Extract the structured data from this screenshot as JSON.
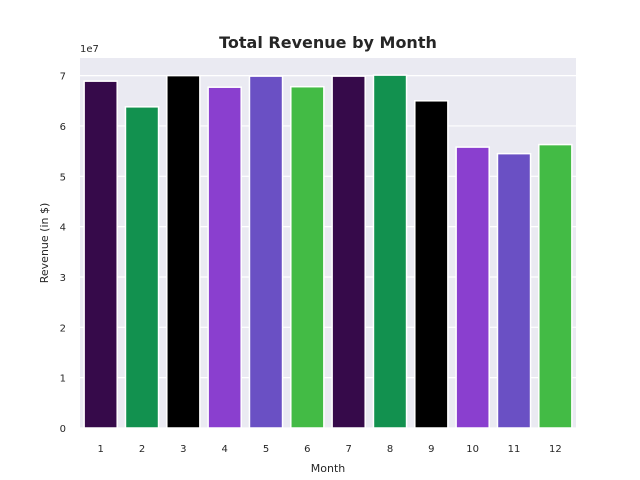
{
  "chart_data": {
    "type": "bar",
    "title": "Total Revenue by Month",
    "xlabel": "Month",
    "ylabel": "Revenue (in $)",
    "offset_label": "1e7",
    "categories": [
      "1",
      "2",
      "3",
      "4",
      "5",
      "6",
      "7",
      "8",
      "9",
      "10",
      "11",
      "12"
    ],
    "values": [
      68900000,
      63800000,
      70000000,
      67700000,
      69900000,
      67800000,
      69900000,
      70100000,
      65000000,
      55800000,
      54500000,
      56300000
    ],
    "bar_colors": [
      "#360a4a",
      "#12914f",
      "#000000",
      "#8a3fcf",
      "#6a50c4",
      "#43bb45",
      "#360a4a",
      "#12914f",
      "#000000",
      "#8a3fcf",
      "#6a50c4",
      "#43bb45"
    ],
    "ylim": [
      0,
      73500000
    ],
    "y_ticks": [
      0,
      10000000,
      20000000,
      30000000,
      40000000,
      50000000,
      60000000,
      70000000
    ],
    "y_tick_labels": [
      "0",
      "1",
      "2",
      "3",
      "4",
      "5",
      "6",
      "7"
    ],
    "grid": true,
    "plot_background": "#eaeaf2",
    "grid_color": "#ffffff",
    "text_color": "#262626",
    "legend": "none"
  }
}
